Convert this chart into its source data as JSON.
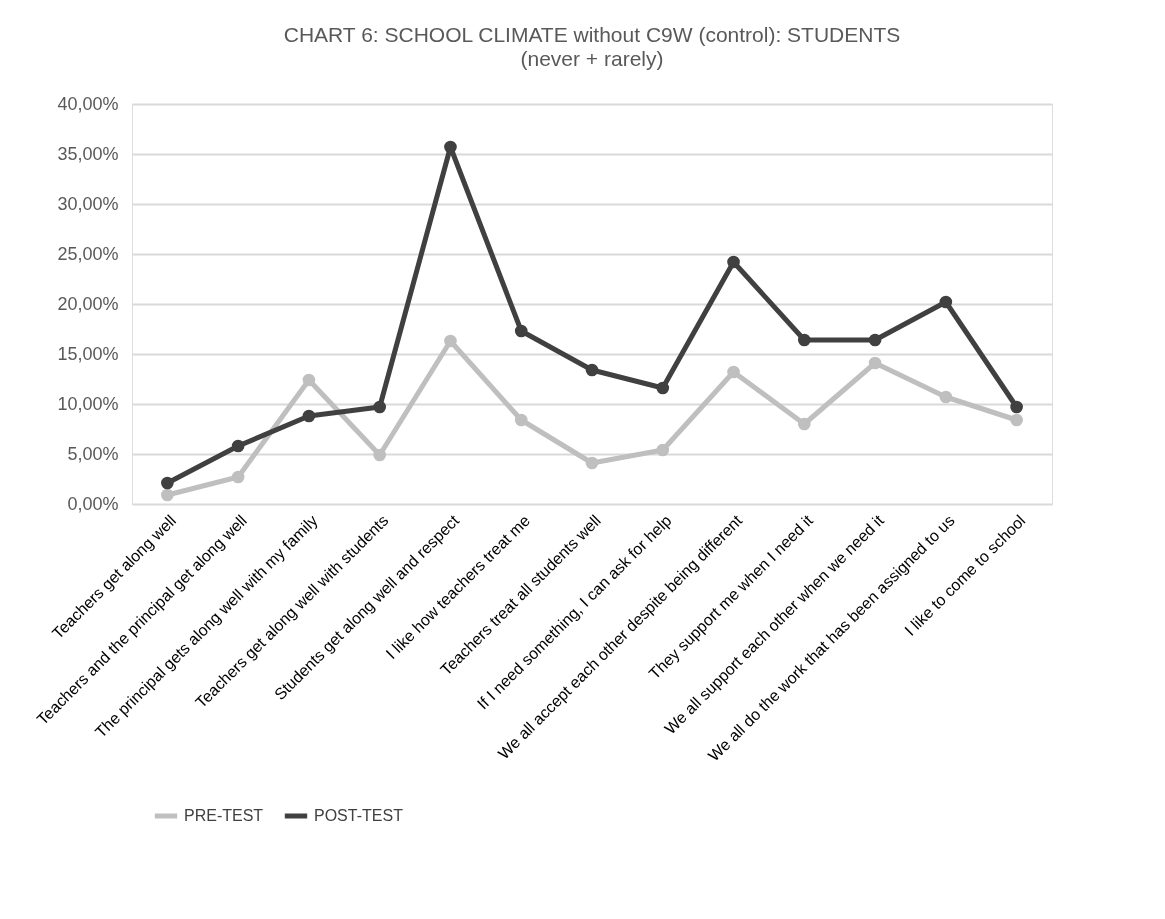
{
  "chart_data": {
    "type": "line",
    "title": "CHART 6: SCHOOL CLIMATE without C9W (control):  STUDENTS",
    "subtitle": "(never + rarely)",
    "categories": [
      "Teachers get along well",
      "Teachers  and the principal get along well",
      "The principal gets along well with my family",
      "Teachers get along well with students",
      "Students get along well and respect",
      "I like how teachers treat me",
      "Teachers treat all students well",
      "If I need something, I can ask for help",
      "We all accept each other despite being different",
      "They support me when I need it",
      "We all support each other when we need it",
      "We all do the work that has been assigned to us",
      "I like to come to school"
    ],
    "series": [
      {
        "name": "PRE-TEST",
        "color": "#bfbfbf",
        "values": [
          0.9,
          2.7,
          12.4,
          4.9,
          16.3,
          8.4,
          4.1,
          5.4,
          13.2,
          8.0,
          14.1,
          10.7,
          8.4
        ]
      },
      {
        "name": "POST-TEST",
        "color": "#404040",
        "values": [
          2.1,
          5.8,
          8.8,
          9.7,
          35.7,
          17.3,
          13.4,
          11.6,
          24.2,
          16.4,
          16.4,
          20.2,
          9.7
        ]
      }
    ],
    "ylim": [
      0,
      40
    ],
    "yticks": [
      {
        "value": 0,
        "label": "0,00%"
      },
      {
        "value": 5,
        "label": "5,00%"
      },
      {
        "value": 10,
        "label": "10,00%"
      },
      {
        "value": 15,
        "label": "15,00%"
      },
      {
        "value": 20,
        "label": "20,00%"
      },
      {
        "value": 25,
        "label": "25,00%"
      },
      {
        "value": 30,
        "label": "30,00%"
      },
      {
        "value": 35,
        "label": "35,00%"
      },
      {
        "value": 40,
        "label": "40,00%"
      }
    ],
    "grid": "y",
    "legend": "bottom",
    "marker": "circle",
    "line_style": "solid"
  }
}
